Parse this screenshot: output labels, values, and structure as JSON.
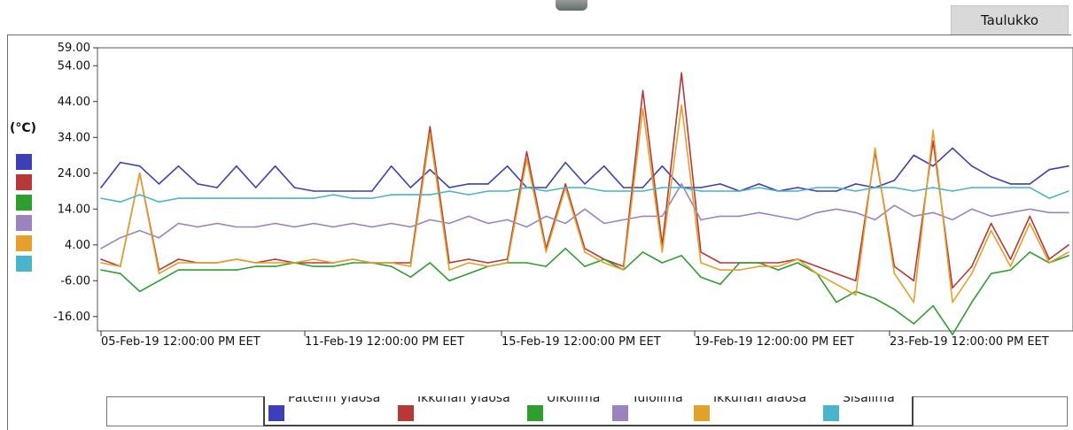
{
  "header": {
    "tab_label": "Taulukko"
  },
  "chart_data": {
    "type": "line",
    "title": "",
    "ylabel": "(°C)",
    "xlabel": "",
    "ylim": [
      -20,
      59
    ],
    "yticks": [
      "59.00",
      "54.00",
      "44.00",
      "34.00",
      "24.00",
      "14.00",
      "4.00",
      "-6.00",
      "-16.00"
    ],
    "xticks": [
      "05-Feb-19 12:00:00 PM EET",
      "11-Feb-19 12:00:00 PM EET",
      "15-Feb-19 12:00:00 PM EET",
      "19-Feb-19 12:00:00 PM EET",
      "23-Feb-19 12:00:00 PM EET"
    ],
    "x": [
      0,
      0.5,
      1,
      1.5,
      2,
      2.5,
      3,
      3.5,
      4,
      4.5,
      5,
      5.5,
      6,
      6.5,
      7,
      7.5,
      8,
      8.5,
      9,
      9.5,
      10,
      10.5,
      11,
      11.5,
      12,
      12.5,
      13,
      13.5,
      14,
      14.5,
      15,
      15.5,
      16,
      16.5,
      17,
      17.5,
      18,
      18.5,
      19,
      19.5,
      20,
      20.5,
      21,
      21.5,
      22,
      22.5,
      23,
      23.5,
      24,
      24.5,
      25
    ],
    "series": [
      {
        "name": "Patterin yläosa",
        "color": "#3c3fb8",
        "values": [
          20,
          27,
          26,
          21,
          26,
          21,
          20,
          26,
          20,
          26,
          20,
          19,
          19,
          19,
          19,
          26,
          20,
          25,
          20,
          21,
          21,
          26,
          20,
          20,
          27,
          21,
          26,
          20,
          20,
          26,
          20,
          20,
          21,
          19,
          21,
          19,
          20,
          19,
          19,
          21,
          20,
          22,
          29,
          26,
          31,
          26,
          23,
          21,
          21,
          25,
          26
        ]
      },
      {
        "name": "Ikkunan yläosa",
        "color": "#b83838",
        "values": [
          0,
          -2,
          24,
          -3,
          0,
          -1,
          -1,
          0,
          -1,
          0,
          -1,
          -1,
          -1,
          0,
          -1,
          -1,
          -1,
          37,
          -1,
          0,
          -1,
          0,
          30,
          3,
          21,
          3,
          0,
          -2,
          47,
          4,
          52,
          2,
          -1,
          -1,
          -1,
          -1,
          0,
          -2,
          -4,
          -6,
          30,
          -2,
          -6,
          33,
          -8,
          -2,
          10,
          0,
          12,
          0,
          4
        ]
      },
      {
        "name": "Ulkoilma",
        "color": "#2f9e2f",
        "values": [
          -3,
          -4,
          -9,
          -6,
          -3,
          -3,
          -3,
          -3,
          -2,
          -2,
          -1,
          -2,
          -2,
          -1,
          -1,
          -2,
          -5,
          -1,
          -6,
          -4,
          -2,
          -1,
          -1,
          -2,
          3,
          -2,
          0,
          -3,
          2,
          -1,
          1,
          -5,
          -7,
          -1,
          -1,
          -3,
          -1,
          -4,
          -12,
          -9,
          -11,
          -14,
          -18,
          -13,
          -21,
          -12,
          -4,
          -3,
          2,
          -1,
          1
        ]
      },
      {
        "name": "Tuloilma",
        "color": "#9b83bf",
        "values": [
          3,
          6,
          8,
          6,
          10,
          9,
          10,
          9,
          9,
          10,
          9,
          10,
          9,
          10,
          9,
          10,
          9,
          11,
          10,
          12,
          10,
          11,
          9,
          12,
          10,
          14,
          10,
          11,
          12,
          12,
          21,
          11,
          12,
          12,
          13,
          12,
          11,
          13,
          14,
          13,
          11,
          15,
          12,
          13,
          11,
          14,
          12,
          13,
          14,
          13,
          13
        ]
      },
      {
        "name": "Ikkunan alaosa",
        "color": "#e3a02a",
        "values": [
          -1,
          -2,
          24,
          -4,
          -1,
          -1,
          -1,
          0,
          -1,
          -1,
          -1,
          0,
          -1,
          0,
          -1,
          -1,
          -2,
          35,
          -3,
          -1,
          -2,
          -1,
          28,
          2,
          20,
          2,
          -1,
          -3,
          42,
          2,
          43,
          -1,
          -3,
          -3,
          -2,
          -2,
          0,
          -4,
          -7,
          -10,
          31,
          -4,
          -12,
          36,
          -12,
          -4,
          8,
          -2,
          10,
          -1,
          2
        ]
      },
      {
        "name": "Sisäilma",
        "color": "#4ab4cc",
        "values": [
          17,
          16,
          18,
          16,
          17,
          17,
          17,
          17,
          17,
          17,
          17,
          17,
          18,
          17,
          17,
          18,
          18,
          18,
          19,
          18,
          19,
          19,
          20,
          19,
          20,
          20,
          19,
          19,
          19,
          20,
          20,
          19,
          19,
          19,
          20,
          19,
          19,
          20,
          20,
          19,
          20,
          20,
          19,
          20,
          19,
          20,
          20,
          20,
          20,
          17,
          19
        ]
      }
    ],
    "legend": {
      "position": "bottom"
    },
    "grid": false
  }
}
